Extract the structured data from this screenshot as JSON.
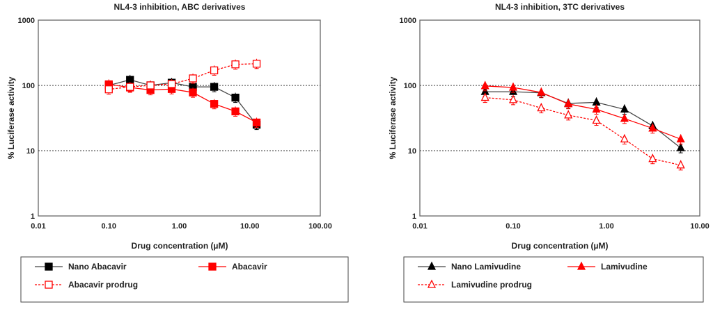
{
  "chart_data": [
    {
      "type": "line",
      "title": "NL4-3 inhibition, ABC derivatives",
      "xlabel": "Drug concentration (µM)",
      "ylabel": "% Luciferase activity",
      "xscale": "log",
      "yscale": "log",
      "xlim": [
        0.01,
        100
      ],
      "ylim": [
        1,
        1000
      ],
      "xticks": [
        "0.01",
        "0.10",
        "1.00",
        "10.00",
        "100.00"
      ],
      "yticks": [
        "1",
        "10",
        "100",
        "1000"
      ],
      "legend_placement": "bottom",
      "x": [
        0.1,
        0.2,
        0.39,
        0.78,
        1.56,
        3.125,
        6.25,
        12.5
      ],
      "series": [
        {
          "name": "Nano Abacavir",
          "color": "#000000",
          "marker": "square-filled",
          "dash": false,
          "values": [
            100,
            122,
            100,
            110,
            95,
            95,
            65,
            25
          ]
        },
        {
          "name": "Abacavir",
          "color": "#ff0000",
          "marker": "square-filled",
          "dash": false,
          "values": [
            104,
            93,
            85,
            88,
            78,
            52,
            40,
            27
          ]
        },
        {
          "name": "Abacavir prodrug",
          "color": "#ff0000",
          "marker": "square-open",
          "dash": true,
          "values": [
            87,
            95,
            100,
            105,
            128,
            170,
            210,
            215
          ]
        }
      ]
    },
    {
      "type": "line",
      "title": "NL4-3 inhibition, 3TC derivatives",
      "xlabel": "Drug concentration (µM)",
      "ylabel": "% Luciferase activity",
      "xscale": "log",
      "yscale": "log",
      "xlim": [
        0.01,
        10
      ],
      "ylim": [
        1,
        1000
      ],
      "xticks": [
        "0.01",
        "0.10",
        "1.00",
        "10.00"
      ],
      "yticks": [
        "1",
        "10",
        "100",
        "1000"
      ],
      "legend_placement": "bottom",
      "x": [
        0.05,
        0.1,
        0.2,
        0.39,
        0.78,
        1.56,
        3.125,
        6.25
      ],
      "series": [
        {
          "name": "Nano Lamivudine",
          "color": "#000000",
          "marker": "triangle-filled",
          "dash": false,
          "values": [
            80,
            80,
            77,
            53,
            55,
            43,
            24,
            11
          ]
        },
        {
          "name": "Lamivudine",
          "color": "#ff0000",
          "marker": "triangle-filled",
          "dash": false,
          "values": [
            98,
            93,
            78,
            52,
            43,
            31,
            22,
            15
          ]
        },
        {
          "name": "Lamivudine prodrug",
          "color": "#ff0000",
          "marker": "triangle-open",
          "dash": true,
          "values": [
            65,
            60,
            45,
            35,
            29,
            15,
            7.5,
            6
          ]
        }
      ]
    }
  ]
}
